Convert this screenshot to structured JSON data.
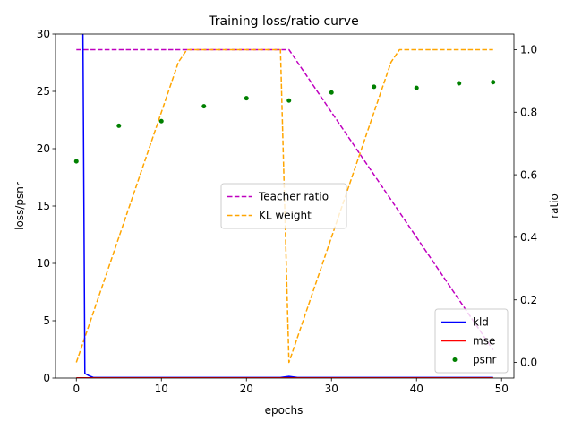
{
  "chart_data": {
    "type": "line",
    "title": "Training loss/ratio curve",
    "xlabel": "epochs",
    "ylabel_left": "loss/psnr",
    "ylabel_right": "ratio",
    "xlim": [
      -2.45,
      51.45
    ],
    "ylim_left": [
      0,
      30
    ],
    "ylim_right": [
      -0.05,
      1.05
    ],
    "x_ticks": [
      0,
      10,
      20,
      30,
      40,
      50
    ],
    "y_left_ticks": [
      0,
      5,
      10,
      15,
      20,
      25,
      30
    ],
    "y_right_ticks": [
      0.0,
      0.2,
      0.4,
      0.6,
      0.8,
      1.0
    ],
    "y_right_tick_labels": [
      "0.0",
      "0.2",
      "0.4",
      "0.6",
      "0.8",
      "1.0"
    ],
    "grid": false,
    "left_series": [
      {
        "name": "kld",
        "color": "#0000ff",
        "style": "solid",
        "x": [
          0,
          0.3,
          0.7,
          1,
          1.5,
          2,
          5,
          10,
          15,
          20,
          24,
          25,
          26,
          30,
          35,
          40,
          45,
          49
        ],
        "y": [
          80,
          60,
          40,
          0.4,
          0.2,
          0.05,
          0.05,
          0.05,
          0.05,
          0.05,
          0.05,
          0.15,
          0.05,
          0.05,
          0.05,
          0.05,
          0.05,
          0.05
        ]
      },
      {
        "name": "mse",
        "color": "#ff0000",
        "style": "solid",
        "x": [
          0,
          49
        ],
        "y": [
          0.02,
          0.02
        ]
      },
      {
        "name": "psnr",
        "color": "#008000",
        "style": "markers",
        "x": [
          0,
          5,
          10,
          15,
          20,
          25,
          30,
          35,
          40,
          45,
          49
        ],
        "y": [
          18.9,
          22.0,
          22.4,
          23.7,
          24.4,
          24.2,
          24.9,
          25.4,
          25.3,
          25.7,
          25.8
        ]
      }
    ],
    "right_series": [
      {
        "name": "Teacher ratio",
        "color": "#bf00bf",
        "style": "dashed",
        "x": [
          0,
          25,
          49
        ],
        "y": [
          1.0,
          1.0,
          0.04
        ]
      },
      {
        "name": "KL weight",
        "color": "#ffa500",
        "style": "dashed",
        "x": [
          0,
          12,
          13,
          24,
          25,
          37,
          38,
          49
        ],
        "y": [
          0.0,
          0.96,
          1.0,
          1.0,
          0.0,
          0.96,
          1.0,
          1.0
        ]
      }
    ],
    "legends": {
      "center": "Teacher ratio, KL weight",
      "lower_right": "kld, mse, psnr"
    }
  }
}
